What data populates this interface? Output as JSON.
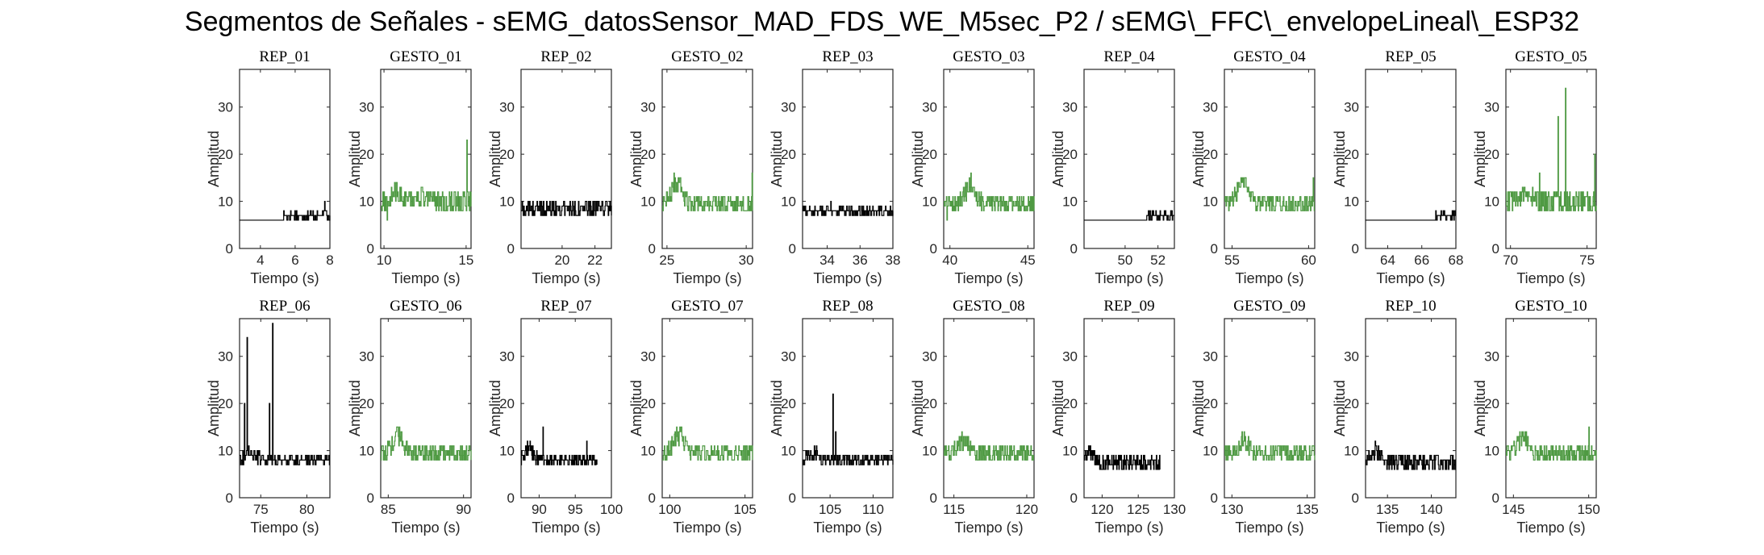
{
  "page": {
    "title": "Segmentos de Señales - sEMG_datosSensor_MAD_FDS_WE_M5sec_P2 / sEMG\\_FFC\\_envelopeLineal\\_ESP32"
  },
  "colors": {
    "rep_series": "#000000",
    "gesto_series": "#4f9a43",
    "axes": "#262626"
  },
  "chart_data": [
    {
      "type": "line",
      "title": "REP_01",
      "xlabel": "Tiempo (s)",
      "ylabel": "Amplitud",
      "xlim": [
        2.8,
        8
      ],
      "ylim": [
        0,
        38
      ],
      "xticks": [
        4,
        6,
        8
      ],
      "yticks": [
        0,
        10,
        20,
        30
      ],
      "series_kind": "rep",
      "signal": {
        "x_start": 2.8,
        "x_end": 8,
        "baseline": 6,
        "quiet_until": 5.3,
        "noise": 1.5,
        "spikes": [
          [
            7.7,
            10
          ]
        ]
      }
    },
    {
      "type": "line",
      "title": "GESTO_01",
      "xlabel": "Tiempo (s)",
      "ylabel": "Amplitud",
      "xlim": [
        9.8,
        15.3
      ],
      "ylim": [
        0,
        38
      ],
      "xticks": [
        10,
        15
      ],
      "yticks": [
        0,
        10,
        20,
        30
      ],
      "series_kind": "gesto",
      "signal": {
        "x_start": 9.8,
        "x_end": 15.3,
        "baseline": 9,
        "noise": 2,
        "bumps": [
          [
            10.8,
            11
          ],
          [
            12.3,
            10
          ]
        ],
        "spikes": [
          [
            15.05,
            23
          ],
          [
            10.2,
            6
          ]
        ]
      }
    },
    {
      "type": "line",
      "title": "REP_02",
      "xlabel": "Tiempo (s)",
      "ylabel": "Amplitud",
      "xlim": [
        17.5,
        23
      ],
      "ylim": [
        0,
        38
      ],
      "xticks": [
        20,
        22
      ],
      "yticks": [
        0,
        10,
        20,
        30
      ],
      "series_kind": "rep",
      "signal": {
        "x_start": 17.5,
        "x_end": 23,
        "baseline": 7.5,
        "noise": 1.5,
        "spikes": [
          [
            18.2,
            10
          ]
        ]
      }
    },
    {
      "type": "line",
      "title": "GESTO_02",
      "xlabel": "Tiempo (s)",
      "ylabel": "Amplitud",
      "xlim": [
        24.7,
        30.4
      ],
      "ylim": [
        0,
        38
      ],
      "xticks": [
        25,
        30
      ],
      "yticks": [
        0,
        10,
        20,
        30
      ],
      "series_kind": "gesto",
      "signal": {
        "x_start": 24.7,
        "x_end": 30.4,
        "baseline": 8.5,
        "noise": 1.8,
        "bumps": [
          [
            25.6,
            13
          ]
        ],
        "spikes": [
          [
            30.35,
            16
          ]
        ]
      }
    },
    {
      "type": "line",
      "title": "REP_03",
      "xlabel": "Tiempo (s)",
      "ylabel": "Amplitud",
      "xlim": [
        32.5,
        38
      ],
      "ylim": [
        0,
        38
      ],
      "xticks": [
        34,
        36,
        38
      ],
      "yticks": [
        0,
        10,
        20,
        30
      ],
      "series_kind": "rep",
      "signal": {
        "x_start": 32.5,
        "x_end": 38,
        "baseline": 7,
        "noise": 1.5,
        "spikes": [
          [
            34.2,
            10
          ]
        ]
      }
    },
    {
      "type": "line",
      "title": "GESTO_03",
      "xlabel": "Tiempo (s)",
      "ylabel": "Amplitud",
      "xlim": [
        39.6,
        45.4
      ],
      "ylim": [
        0,
        38
      ],
      "xticks": [
        40,
        45
      ],
      "yticks": [
        0,
        10,
        20,
        30
      ],
      "series_kind": "gesto",
      "signal": {
        "x_start": 39.6,
        "x_end": 45.4,
        "baseline": 8.5,
        "noise": 1.8,
        "bumps": [
          [
            41.3,
            12.5
          ]
        ],
        "spikes": [
          [
            39.8,
            6
          ]
        ]
      }
    },
    {
      "type": "line",
      "title": "REP_04",
      "xlabel": "Tiempo (s)",
      "ylabel": "Amplitud",
      "xlim": [
        47.5,
        53
      ],
      "ylim": [
        0,
        38
      ],
      "xticks": [
        50,
        52
      ],
      "yticks": [
        0,
        10,
        20,
        30
      ],
      "series_kind": "rep",
      "signal": {
        "x_start": 47.5,
        "x_end": 53,
        "baseline": 6,
        "quiet_until": 51.3,
        "noise": 1.5,
        "spikes": [
          [
            51.4,
            8
          ]
        ]
      }
    },
    {
      "type": "line",
      "title": "GESTO_04",
      "xlabel": "Tiempo (s)",
      "ylabel": "Amplitud",
      "xlim": [
        54.5,
        60.4
      ],
      "ylim": [
        0,
        38
      ],
      "xticks": [
        55,
        60
      ],
      "yticks": [
        0,
        10,
        20,
        30
      ],
      "series_kind": "gesto",
      "signal": {
        "x_start": 54.5,
        "x_end": 60.4,
        "baseline": 8.5,
        "noise": 1.8,
        "bumps": [
          [
            55.7,
            13.5
          ]
        ],
        "spikes": [
          [
            60.3,
            15
          ]
        ]
      }
    },
    {
      "type": "line",
      "title": "REP_05",
      "xlabel": "Tiempo (s)",
      "ylabel": "Amplitud",
      "xlim": [
        62.7,
        68
      ],
      "ylim": [
        0,
        38
      ],
      "xticks": [
        64,
        66,
        68
      ],
      "yticks": [
        0,
        10,
        20,
        30
      ],
      "series_kind": "rep",
      "signal": {
        "x_start": 62.7,
        "x_end": 68,
        "baseline": 6,
        "quiet_until": 66.8,
        "noise": 1.3,
        "spikes": [
          [
            67.3,
            8
          ]
        ]
      }
    },
    {
      "type": "line",
      "title": "GESTO_05",
      "xlabel": "Tiempo (s)",
      "ylabel": "Amplitud",
      "xlim": [
        69.7,
        75.6
      ],
      "ylim": [
        0,
        38
      ],
      "xticks": [
        70,
        75
      ],
      "yticks": [
        0,
        10,
        20,
        30
      ],
      "series_kind": "gesto",
      "signal": {
        "x_start": 69.7,
        "x_end": 75.6,
        "baseline": 9,
        "noise": 2,
        "bumps": [
          [
            71,
            11
          ]
        ],
        "spikes": [
          [
            73.1,
            28
          ],
          [
            73.6,
            34
          ],
          [
            75.5,
            20
          ],
          [
            71.9,
            16
          ],
          [
            70.8,
            12
          ]
        ]
      }
    },
    {
      "type": "line",
      "title": "REP_06",
      "xlabel": "Tiempo (s)",
      "ylabel": "Amplitud",
      "xlim": [
        72.7,
        82.5
      ],
      "ylim": [
        0,
        38
      ],
      "xticks": [
        75,
        80
      ],
      "yticks": [
        0,
        10,
        20,
        30
      ],
      "series_kind": "rep",
      "signal": {
        "x_start": 72.7,
        "x_end": 82.5,
        "baseline": 7,
        "noise": 1.5,
        "bumps": [
          [
            74,
            8.5
          ]
        ],
        "spikes": [
          [
            73.2,
            20
          ],
          [
            73.5,
            34
          ],
          [
            75.9,
            20
          ],
          [
            76.3,
            37
          ]
        ]
      }
    },
    {
      "type": "line",
      "title": "GESTO_06",
      "xlabel": "Tiempo (s)",
      "ylabel": "Amplitud",
      "xlim": [
        84.5,
        90.5
      ],
      "ylim": [
        0,
        38
      ],
      "xticks": [
        85,
        90
      ],
      "yticks": [
        0,
        10,
        20,
        30
      ],
      "series_kind": "gesto",
      "signal": {
        "x_start": 84.5,
        "x_end": 90.5,
        "baseline": 8.5,
        "noise": 1.8,
        "bumps": [
          [
            85.6,
            12
          ]
        ],
        "spikes": []
      }
    },
    {
      "type": "line",
      "title": "REP_07",
      "xlabel": "Tiempo (s)",
      "ylabel": "Amplitud",
      "xlim": [
        87.5,
        100
      ],
      "ylim": [
        0,
        38
      ],
      "xticks": [
        90,
        95,
        100
      ],
      "yticks": [
        0,
        10,
        20,
        30
      ],
      "series_kind": "rep",
      "signal": {
        "x_start": 87.5,
        "x_end": 98,
        "baseline": 7,
        "noise": 1.5,
        "bumps": [
          [
            88.5,
            9.5
          ]
        ],
        "spikes": [
          [
            90.5,
            15
          ],
          [
            96.6,
            12
          ]
        ]
      }
    },
    {
      "type": "line",
      "title": "GESTO_07",
      "xlabel": "Tiempo (s)",
      "ylabel": "Amplitud",
      "xlim": [
        99.5,
        105.5
      ],
      "ylim": [
        0,
        38
      ],
      "xticks": [
        100,
        105
      ],
      "yticks": [
        0,
        10,
        20,
        30
      ],
      "series_kind": "gesto",
      "signal": {
        "x_start": 99.5,
        "x_end": 105.5,
        "baseline": 8.5,
        "noise": 1.8,
        "bumps": [
          [
            100.6,
            12.5
          ]
        ],
        "spikes": [
          [
            100.3,
            13.5
          ]
        ]
      }
    },
    {
      "type": "line",
      "title": "REP_08",
      "xlabel": "Tiempo (s)",
      "ylabel": "Amplitud",
      "xlim": [
        101.8,
        112.3
      ],
      "ylim": [
        0,
        38
      ],
      "xticks": [
        105,
        110
      ],
      "yticks": [
        0,
        10,
        20,
        30
      ],
      "series_kind": "rep",
      "signal": {
        "x_start": 101.8,
        "x_end": 112.3,
        "baseline": 7,
        "noise": 1.5,
        "bumps": [
          [
            103,
            8.5
          ]
        ],
        "spikes": [
          [
            105.3,
            22
          ],
          [
            105.6,
            14
          ]
        ]
      }
    },
    {
      "type": "line",
      "title": "GESTO_08",
      "xlabel": "Tiempo (s)",
      "ylabel": "Amplitud",
      "xlim": [
        114.3,
        120.5
      ],
      "ylim": [
        0,
        38
      ],
      "xticks": [
        115,
        120
      ],
      "yticks": [
        0,
        10,
        20,
        30
      ],
      "series_kind": "gesto",
      "signal": {
        "x_start": 114.3,
        "x_end": 120.5,
        "baseline": 8.5,
        "noise": 1.8,
        "bumps": [
          [
            115.6,
            11
          ]
        ],
        "spikes": [
          [
            115.2,
            12
          ]
        ]
      }
    },
    {
      "type": "line",
      "title": "REP_09",
      "xlabel": "Tiempo (s)",
      "ylabel": "Amplitud",
      "xlim": [
        117.5,
        130
      ],
      "ylim": [
        0,
        38
      ],
      "xticks": [
        120,
        125,
        130
      ],
      "yticks": [
        0,
        10,
        20,
        30
      ],
      "series_kind": "rep",
      "signal": {
        "x_start": 117.5,
        "x_end": 128,
        "baseline": 6.5,
        "noise": 1.5,
        "bumps": [
          [
            118.3,
            8.5
          ]
        ],
        "spikes": [
          [
            118,
            9
          ]
        ]
      }
    },
    {
      "type": "line",
      "title": "GESTO_09",
      "xlabel": "Tiempo (s)",
      "ylabel": "Amplitud",
      "xlim": [
        129.5,
        135.5
      ],
      "ylim": [
        0,
        38
      ],
      "xticks": [
        130,
        135
      ],
      "yticks": [
        0,
        10,
        20,
        30
      ],
      "series_kind": "gesto",
      "signal": {
        "x_start": 129.5,
        "x_end": 135.5,
        "baseline": 8.5,
        "noise": 1.8,
        "bumps": [
          [
            130.8,
            11
          ]
        ],
        "spikes": []
      }
    },
    {
      "type": "line",
      "title": "REP_10",
      "xlabel": "Tiempo (s)",
      "ylabel": "Amplitud",
      "xlim": [
        132.5,
        142.8
      ],
      "ylim": [
        0,
        38
      ],
      "xticks": [
        135,
        140
      ],
      "yticks": [
        0,
        10,
        20,
        30
      ],
      "series_kind": "rep",
      "signal": {
        "x_start": 132.5,
        "x_end": 142.8,
        "baseline": 6.5,
        "noise": 1.5,
        "bumps": [
          [
            133.5,
            9
          ]
        ],
        "spikes": [
          [
            133.2,
            10
          ]
        ]
      }
    },
    {
      "type": "line",
      "title": "GESTO_10",
      "xlabel": "Tiempo (s)",
      "ylabel": "Amplitud",
      "xlim": [
        144.5,
        150.5
      ],
      "ylim": [
        0,
        38
      ],
      "xticks": [
        145,
        150
      ],
      "yticks": [
        0,
        10,
        20,
        30
      ],
      "series_kind": "gesto",
      "signal": {
        "x_start": 144.5,
        "x_end": 150.5,
        "baseline": 8.5,
        "noise": 1.8,
        "bumps": [
          [
            145.6,
            12
          ]
        ],
        "spikes": [
          [
            150,
            15
          ],
          [
            145.3,
            13
          ]
        ]
      }
    }
  ]
}
